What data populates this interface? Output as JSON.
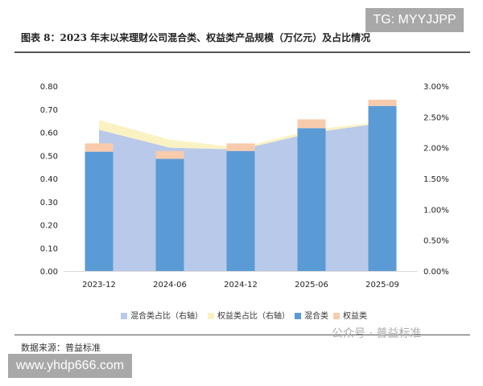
{
  "title": "图表 8：2023 年末以来理财公司混合类、权益类产品规模（万亿元）及占比情况",
  "watermark_tg": "TG: MYYJJPP",
  "source": "数据来源：普益标准",
  "wechat_watermark": "公众号 · 普益标准",
  "url_watermark": "www.yhdp666.com",
  "chart_data": {
    "type": "bar",
    "categories": [
      "2023-12",
      "2024-06",
      "2024-12",
      "2025-06",
      "2025-09"
    ],
    "left_axis": {
      "ylim": [
        0,
        0.8
      ],
      "ticks": [
        "0.00",
        "0.10",
        "0.20",
        "0.30",
        "0.40",
        "0.50",
        "0.60",
        "0.70",
        "0.80"
      ]
    },
    "right_axis": {
      "ylim": [
        0,
        3
      ],
      "ticks": [
        "0.00%",
        "0.50%",
        "1.00%",
        "1.50%",
        "2.00%",
        "2.50%",
        "3.00%"
      ]
    },
    "series": [
      {
        "name": "混合类占比（右轴）",
        "kind": "area",
        "axis": "right",
        "color": "#b9c9ea",
        "values": [
          2.29,
          2.0,
          1.97,
          2.24,
          2.4
        ]
      },
      {
        "name": "权益类占比（右轴）",
        "kind": "area",
        "axis": "right",
        "stacked": true,
        "color": "#fbf2c4",
        "values": [
          0.16,
          0.13,
          0.03,
          0.05,
          0.02
        ]
      },
      {
        "name": "混合类",
        "kind": "bar",
        "axis": "left",
        "color": "#5b9bd5",
        "values": [
          0.516,
          0.485,
          0.519,
          0.618,
          0.714
        ]
      },
      {
        "name": "权益类",
        "kind": "bar",
        "axis": "left",
        "stacked": true,
        "color": "#f8cbad",
        "values": [
          0.036,
          0.034,
          0.033,
          0.038,
          0.027
        ]
      }
    ],
    "legend_position": "bottom"
  }
}
